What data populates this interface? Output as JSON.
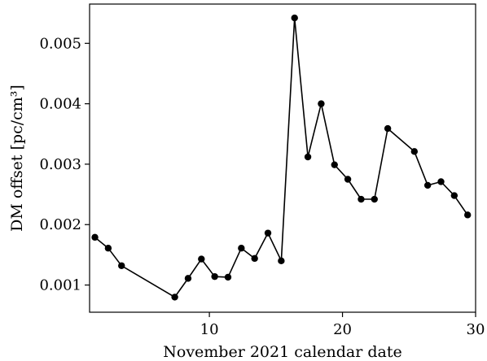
{
  "chart_data": {
    "type": "line",
    "xlabel": "November 2021 calendar date",
    "ylabel": "DM offset [pc/cm³]",
    "xlim": [
      1,
      30
    ],
    "ylim": [
      0.00055,
      0.00565
    ],
    "xticks": [
      10,
      20,
      30
    ],
    "yticks": [
      0.001,
      0.002,
      0.003,
      0.004,
      0.005
    ],
    "x_tick_labels": [
      "10",
      "20",
      "30"
    ],
    "y_tick_labels": [
      "0.001",
      "0.002",
      "0.003",
      "0.004",
      "0.005"
    ],
    "grid": false,
    "marker": "circle",
    "series": [
      {
        "x": [
          1.4,
          2.4,
          3.4,
          7.4,
          8.4,
          9.4,
          10.4,
          11.4,
          12.4,
          13.4,
          14.4,
          15.4,
          16.4,
          17.4,
          18.4,
          19.4,
          20.4,
          21.4,
          22.4,
          23.4,
          25.4,
          26.4,
          27.4,
          28.4,
          29.4
        ],
        "y": [
          0.00179,
          0.00161,
          0.00132,
          0.0008,
          0.00111,
          0.00143,
          0.00114,
          0.00113,
          0.00161,
          0.00144,
          0.00186,
          0.0014,
          0.00542,
          0.00312,
          0.004,
          0.00299,
          0.00275,
          0.00242,
          0.00242,
          0.00359,
          0.00321,
          0.00265,
          0.00271,
          0.00248,
          0.00216
        ],
        "color": "#000000"
      }
    ]
  }
}
